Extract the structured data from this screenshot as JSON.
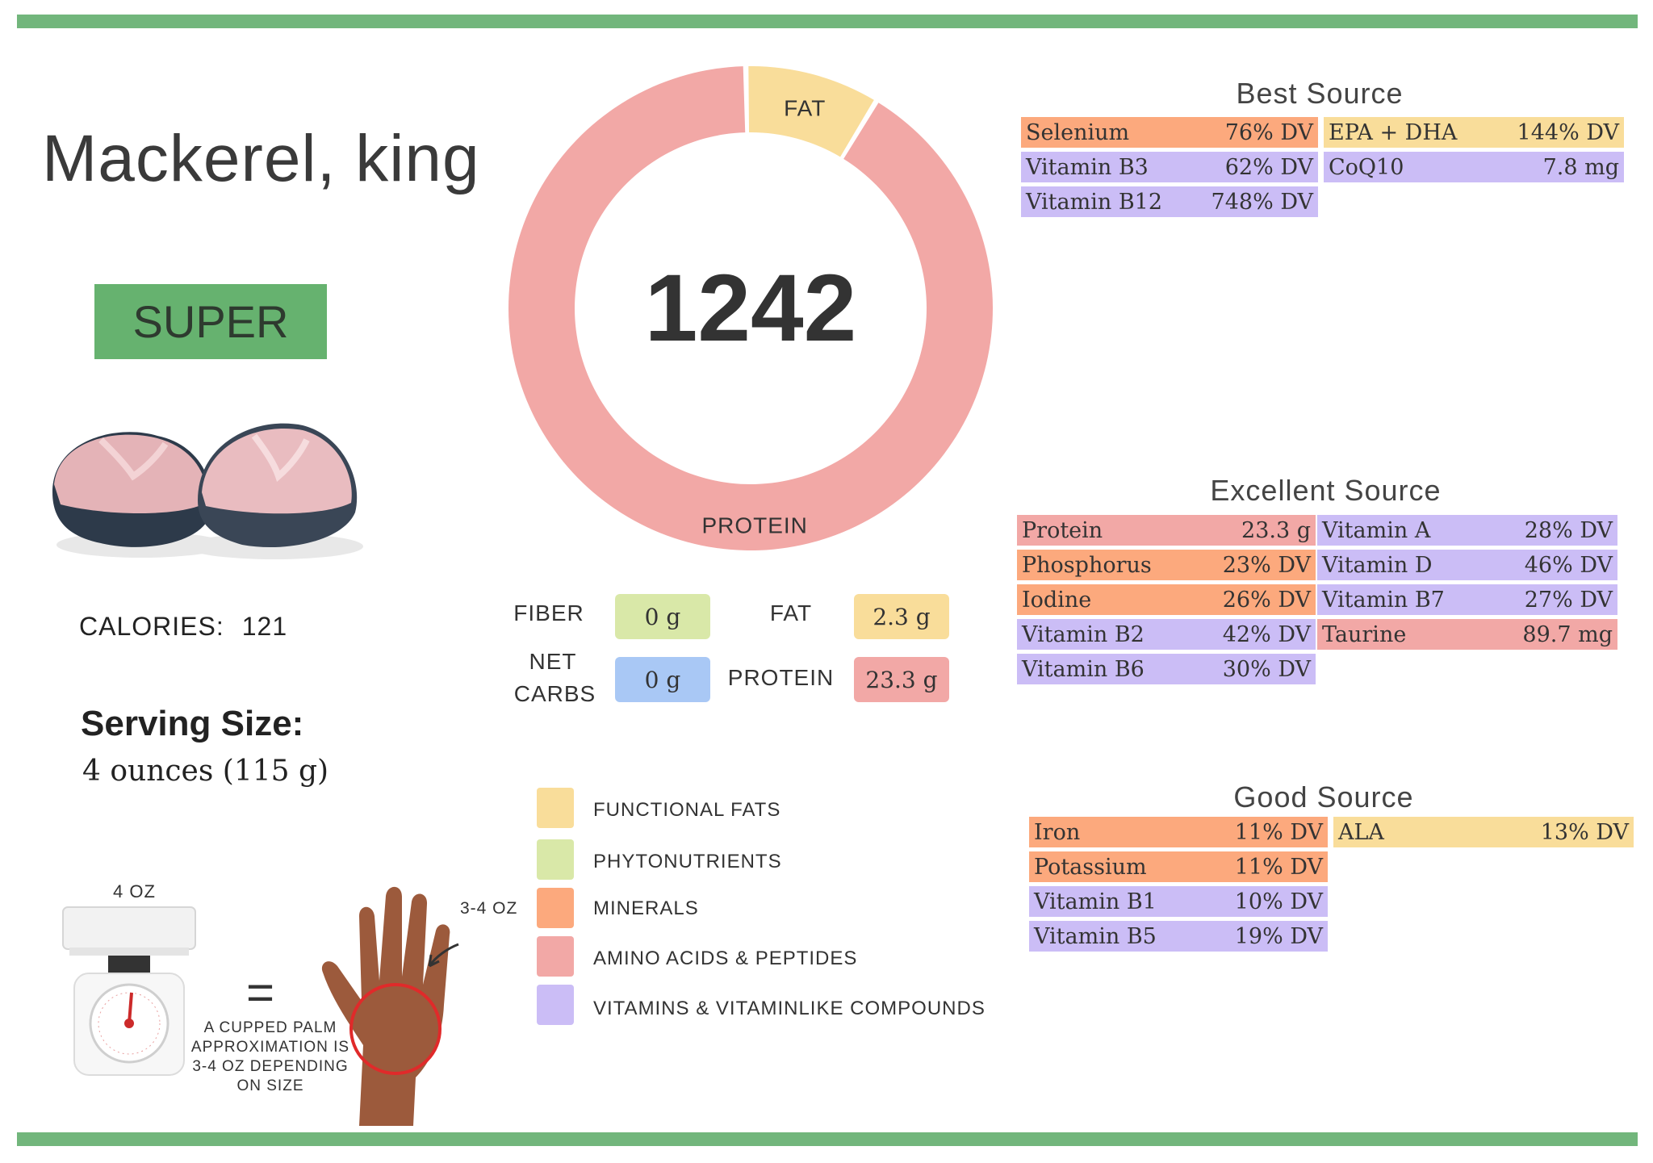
{
  "food": {
    "name": "Mackerel, king",
    "rating": "SUPER",
    "calories_label": "CALORIES:",
    "calories_value": "121",
    "serving_label": "Serving Size:",
    "serving_value": "4 ounces (115 g)"
  },
  "chart_data": {
    "type": "pie",
    "title": "1242",
    "categories": [
      "FAT",
      "PROTEIN"
    ],
    "values": [
      9,
      91
    ],
    "colors": [
      "#f9dd9a",
      "#f2a8a6"
    ]
  },
  "macros": {
    "fiber_label": "FIBER",
    "fiber_value": "0 g",
    "fat_label": "FAT",
    "fat_value": "2.3 g",
    "net_carbs_label_1": "NET",
    "net_carbs_label_2": "CARBS",
    "net_carbs_value": "0 g",
    "protein_label": "PROTEIN",
    "protein_value": "23.3 g"
  },
  "legend": [
    {
      "label": "FUNCTIONAL  FATS",
      "color": "#f9dd9a"
    },
    {
      "label": "PHYTONUTRIENTS",
      "color": "#d9e8a8"
    },
    {
      "label": "MINERALS",
      "color": "#fca97d"
    },
    {
      "label": "AMINO ACIDS & PEPTIDES",
      "color": "#f2a8a6"
    },
    {
      "label": "VITAMINS & VITAMINLIKE COMPOUNDS",
      "color": "#cbbdf6"
    }
  ],
  "best_source": {
    "title": "Best Source",
    "left": [
      {
        "name": "Selenium",
        "value": "76% DV"
      },
      {
        "name": "Vitamin B3",
        "value": "62% DV"
      },
      {
        "name": "Vitamin B12",
        "value": "748% DV"
      }
    ],
    "right": [
      {
        "name": "EPA + DHA",
        "value": "144% DV"
      },
      {
        "name": "CoQ10",
        "value": "7.8 mg"
      }
    ]
  },
  "excellent_source": {
    "title": "Excellent Source",
    "left": [
      {
        "name": "Protein",
        "value": "23.3 g"
      },
      {
        "name": "Phosphorus",
        "value": "23% DV"
      },
      {
        "name": "Iodine",
        "value": "26% DV"
      },
      {
        "name": "Vitamin B2",
        "value": "42% DV"
      },
      {
        "name": "Vitamin B6",
        "value": "30% DV"
      }
    ],
    "right": [
      {
        "name": "Vitamin A",
        "value": "28% DV"
      },
      {
        "name": "Vitamin D",
        "value": "46% DV"
      },
      {
        "name": "Vitamin B7",
        "value": "27% DV"
      },
      {
        "name": "Taurine",
        "value": "89.7 mg"
      }
    ]
  },
  "good_source": {
    "title": "Good Source",
    "left": [
      {
        "name": "Iron",
        "value": "11% DV"
      },
      {
        "name": "Potassium",
        "value": "11% DV"
      },
      {
        "name": "Vitamin B1",
        "value": "10% DV"
      },
      {
        "name": "Vitamin B5",
        "value": "19% DV"
      }
    ],
    "right": [
      {
        "name": "ALA",
        "value": "13% DV"
      }
    ]
  },
  "portion": {
    "scale_label": "4 OZ",
    "equals": "=",
    "palm_label": "3-4 OZ",
    "note": "A CUPPED PALM APPROXIMATION IS 3-4 OZ DEPENDING ON SIZE"
  },
  "colors": {
    "green": "#72b67c",
    "mineral": "#fca97d",
    "vitamin": "#cbbdf6",
    "fat": "#f9dd9a",
    "amino": "#f2a8a6",
    "fiber": "#d9e8a8",
    "carbs": "#a9c8f5"
  }
}
